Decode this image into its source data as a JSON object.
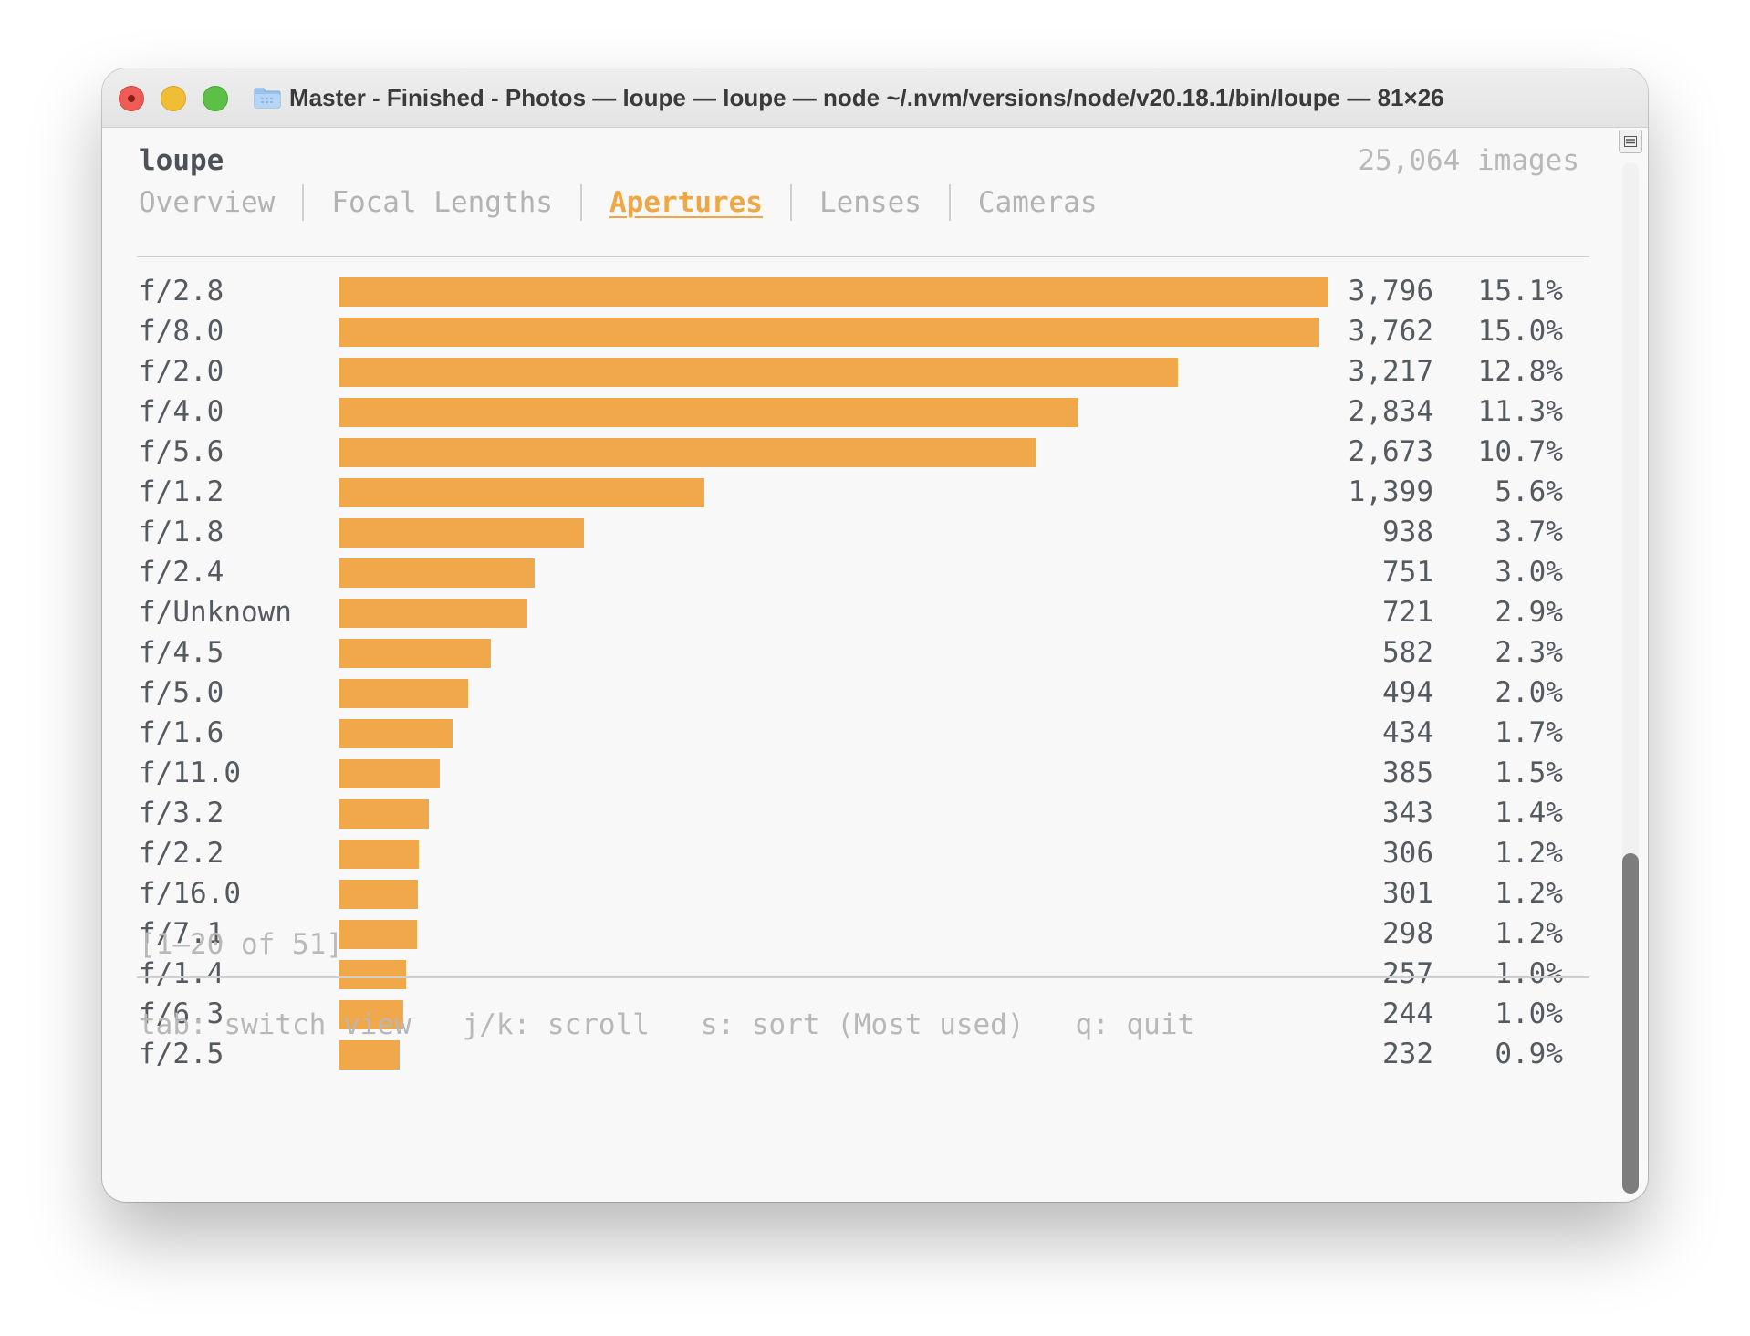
{
  "window": {
    "title": "Master - Finished - Photos — loupe — loupe — node ~/.nvm/versions/node/v20.18.1/bin/loupe — 81×26"
  },
  "app": {
    "name": "loupe",
    "image_count": "25,064 images"
  },
  "tabs": [
    {
      "label": "Overview",
      "active": false
    },
    {
      "label": "Focal Lengths",
      "active": false
    },
    {
      "label": "Apertures",
      "active": true
    },
    {
      "label": "Lenses",
      "active": false
    },
    {
      "label": "Cameras",
      "active": false
    }
  ],
  "chart_data": {
    "type": "bar",
    "categories": [
      "f/2.8",
      "f/8.0",
      "f/2.0",
      "f/4.0",
      "f/5.6",
      "f/1.2",
      "f/1.8",
      "f/2.4",
      "f/Unknown",
      "f/4.5",
      "f/5.0",
      "f/1.6",
      "f/11.0",
      "f/3.2",
      "f/2.2",
      "f/16.0",
      "f/7.1",
      "f/1.4",
      "f/6.3",
      "f/2.5"
    ],
    "values": [
      3796,
      3762,
      3217,
      2834,
      2673,
      1399,
      938,
      751,
      721,
      582,
      494,
      434,
      385,
      343,
      306,
      301,
      298,
      257,
      244,
      232
    ],
    "count_labels": [
      "3,796",
      "3,762",
      "3,217",
      "2,834",
      "2,673",
      "1,399",
      "938",
      "751",
      "721",
      "582",
      "494",
      "434",
      "385",
      "343",
      "306",
      "301",
      "298",
      "257",
      "244",
      "232"
    ],
    "percent_labels": [
      "15.1%",
      "15.0%",
      "12.8%",
      "11.3%",
      "10.7%",
      "5.6%",
      "3.7%",
      "3.0%",
      "2.9%",
      "2.3%",
      "2.0%",
      "1.7%",
      "1.5%",
      "1.4%",
      "1.2%",
      "1.2%",
      "1.2%",
      "1.0%",
      "1.0%",
      "0.9%"
    ],
    "orientation": "horizontal",
    "bar_color": "#f0a84a"
  },
  "pagination": "[1–20 of 51]",
  "footer": "tab: switch view   j/k: scroll   s: sort (Most used)   q: quit",
  "scrollbar": {
    "position_fraction": 0.67,
    "visible_fraction": 0.33
  },
  "colors": {
    "accent": "#f0a643",
    "close": "#ee5c55",
    "minimize": "#f0be36",
    "maximize": "#5cc046"
  },
  "icons": {
    "folder": "folder-icon",
    "scroll_button": "list-icon"
  }
}
